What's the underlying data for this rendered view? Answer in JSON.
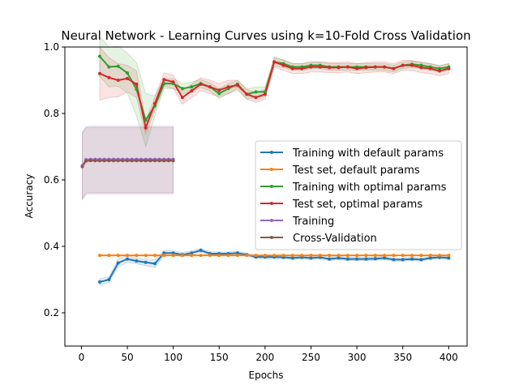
{
  "chart_data": {
    "type": "line",
    "title": "Neural Network - Learning Curves using k=10-Fold Cross Validation",
    "xlabel": "Epochs",
    "ylabel": "Accuracy",
    "xlim": [
      -18,
      420
    ],
    "ylim": [
      0.1,
      1.0
    ],
    "xticks": [
      0,
      50,
      100,
      150,
      200,
      250,
      300,
      350,
      400
    ],
    "yticks": [
      0.2,
      0.4,
      0.6,
      0.8,
      1.0
    ],
    "ytick_labels": [
      "0.2",
      "0.4",
      "0.6",
      "0.8",
      "1.0"
    ],
    "grid": false,
    "legend_position": "center-right",
    "series": [
      {
        "name": "Training with default params",
        "color": "#1f77b4",
        "x": [
          20,
          30,
          40,
          50,
          60,
          70,
          80,
          90,
          100,
          110,
          120,
          130,
          140,
          150,
          160,
          170,
          180,
          190,
          200,
          210,
          220,
          230,
          240,
          250,
          260,
          270,
          280,
          290,
          300,
          310,
          320,
          330,
          340,
          350,
          360,
          370,
          380,
          390,
          400
        ],
        "y": [
          0.293,
          0.3,
          0.35,
          0.362,
          0.356,
          0.352,
          0.348,
          0.38,
          0.38,
          0.375,
          0.38,
          0.388,
          0.378,
          0.378,
          0.378,
          0.38,
          0.375,
          0.368,
          0.368,
          0.368,
          0.367,
          0.365,
          0.367,
          0.365,
          0.367,
          0.362,
          0.365,
          0.362,
          0.362,
          0.362,
          0.363,
          0.365,
          0.36,
          0.36,
          0.362,
          0.36,
          0.365,
          0.367,
          0.365
        ],
        "band": [
          0.01,
          0.008,
          0.012,
          0.01,
          0.008,
          0.01,
          0.012,
          0.008,
          0.006,
          0.006,
          0.006,
          0.006,
          0.006,
          0.005,
          0.005,
          0.005,
          0.005,
          0.005,
          0.005,
          0.005,
          0.005,
          0.005,
          0.005,
          0.005,
          0.005,
          0.005,
          0.005,
          0.005,
          0.005,
          0.005,
          0.005,
          0.005,
          0.005,
          0.005,
          0.005,
          0.005,
          0.005,
          0.005,
          0.005
        ]
      },
      {
        "name": "Test set, default params",
        "color": "#ff7f0e",
        "x": [
          20,
          30,
          40,
          50,
          60,
          70,
          80,
          90,
          100,
          110,
          120,
          130,
          140,
          150,
          160,
          170,
          180,
          190,
          200,
          210,
          220,
          230,
          240,
          250,
          260,
          270,
          280,
          290,
          300,
          310,
          320,
          330,
          340,
          350,
          360,
          370,
          380,
          390,
          400
        ],
        "y": [
          0.373,
          0.373,
          0.373,
          0.373,
          0.373,
          0.373,
          0.373,
          0.373,
          0.373,
          0.373,
          0.373,
          0.373,
          0.373,
          0.373,
          0.373,
          0.373,
          0.373,
          0.373,
          0.373,
          0.373,
          0.373,
          0.373,
          0.373,
          0.373,
          0.373,
          0.373,
          0.373,
          0.373,
          0.373,
          0.373,
          0.373,
          0.373,
          0.373,
          0.373,
          0.373,
          0.373,
          0.373,
          0.373,
          0.373
        ],
        "band": [
          0,
          0,
          0,
          0,
          0,
          0,
          0,
          0,
          0,
          0,
          0,
          0,
          0,
          0,
          0,
          0,
          0,
          0,
          0,
          0,
          0,
          0,
          0,
          0,
          0,
          0,
          0,
          0,
          0,
          0,
          0,
          0,
          0,
          0,
          0,
          0,
          0,
          0,
          0
        ]
      },
      {
        "name": "Training with optimal params",
        "color": "#2ca02c",
        "x": [
          20,
          30,
          40,
          50,
          60,
          70,
          80,
          90,
          100,
          110,
          120,
          130,
          140,
          150,
          160,
          170,
          180,
          190,
          200,
          210,
          220,
          230,
          240,
          250,
          260,
          270,
          280,
          290,
          300,
          310,
          320,
          330,
          340,
          350,
          360,
          370,
          380,
          390,
          400
        ],
        "y": [
          0.972,
          0.94,
          0.942,
          0.922,
          0.873,
          0.78,
          0.823,
          0.89,
          0.89,
          0.875,
          0.88,
          0.89,
          0.88,
          0.86,
          0.875,
          0.888,
          0.858,
          0.865,
          0.865,
          0.955,
          0.95,
          0.94,
          0.94,
          0.945,
          0.945,
          0.94,
          0.94,
          0.94,
          0.94,
          0.94,
          0.94,
          0.94,
          0.935,
          0.945,
          0.948,
          0.945,
          0.94,
          0.935,
          0.94
        ],
        "band": [
          0.06,
          0.06,
          0.06,
          0.06,
          0.08,
          0.08,
          0.03,
          0.015,
          0.015,
          0.015,
          0.015,
          0.012,
          0.012,
          0.015,
          0.015,
          0.012,
          0.015,
          0.015,
          0.015,
          0.012,
          0.012,
          0.01,
          0.01,
          0.01,
          0.01,
          0.01,
          0.01,
          0.01,
          0.01,
          0.01,
          0.01,
          0.01,
          0.01,
          0.01,
          0.01,
          0.01,
          0.01,
          0.01,
          0.01
        ]
      },
      {
        "name": "Test set, optimal params",
        "color": "#d62728",
        "x": [
          20,
          30,
          40,
          50,
          60,
          70,
          80,
          90,
          100,
          110,
          120,
          130,
          140,
          150,
          160,
          170,
          180,
          190,
          200,
          210,
          220,
          230,
          240,
          250,
          260,
          270,
          280,
          290,
          300,
          310,
          320,
          330,
          340,
          350,
          360,
          370,
          380,
          390,
          400
        ],
        "y": [
          0.92,
          0.908,
          0.9,
          0.905,
          0.888,
          0.757,
          0.83,
          0.902,
          0.895,
          0.848,
          0.868,
          0.888,
          0.88,
          0.87,
          0.88,
          0.885,
          0.858,
          0.848,
          0.858,
          0.955,
          0.945,
          0.935,
          0.935,
          0.94,
          0.94,
          0.938,
          0.938,
          0.94,
          0.935,
          0.938,
          0.94,
          0.94,
          0.935,
          0.945,
          0.945,
          0.938,
          0.935,
          0.928,
          0.935
        ],
        "band": [
          0.08,
          0.06,
          0.05,
          0.04,
          0.04,
          0.02,
          0.02,
          0.02,
          0.02,
          0.02,
          0.02,
          0.02,
          0.02,
          0.02,
          0.02,
          0.015,
          0.015,
          0.015,
          0.015,
          0.015,
          0.015,
          0.015,
          0.015,
          0.015,
          0.015,
          0.015,
          0.015,
          0.015,
          0.015,
          0.015,
          0.015,
          0.015,
          0.015,
          0.015,
          0.015,
          0.015,
          0.015,
          0.015,
          0.015
        ]
      },
      {
        "name": "Training",
        "color": "#9467bd",
        "x": [
          1,
          5,
          10,
          15,
          20,
          25,
          30,
          35,
          40,
          45,
          50,
          55,
          60,
          65,
          70,
          75,
          80,
          85,
          90,
          95,
          100
        ],
        "y": [
          0.643,
          0.661,
          0.662,
          0.662,
          0.662,
          0.662,
          0.662,
          0.662,
          0.662,
          0.662,
          0.662,
          0.662,
          0.662,
          0.662,
          0.662,
          0.662,
          0.662,
          0.662,
          0.662,
          0.662,
          0.662
        ],
        "band": [
          0.1,
          0.1,
          0.1,
          0.1,
          0.1,
          0.1,
          0.1,
          0.1,
          0.1,
          0.1,
          0.1,
          0.1,
          0.1,
          0.1,
          0.1,
          0.1,
          0.1,
          0.1,
          0.1,
          0.1,
          0.1
        ]
      },
      {
        "name": "Cross-Validation",
        "color": "#8c564b",
        "x": [
          1,
          5,
          10,
          15,
          20,
          25,
          30,
          35,
          40,
          45,
          50,
          55,
          60,
          65,
          70,
          75,
          80,
          85,
          90,
          95,
          100
        ],
        "y": [
          0.64,
          0.657,
          0.658,
          0.658,
          0.658,
          0.658,
          0.658,
          0.658,
          0.658,
          0.658,
          0.658,
          0.658,
          0.658,
          0.658,
          0.658,
          0.658,
          0.658,
          0.658,
          0.658,
          0.658,
          0.658
        ],
        "band": [
          0.1,
          0.1,
          0.1,
          0.1,
          0.1,
          0.1,
          0.1,
          0.1,
          0.1,
          0.1,
          0.1,
          0.1,
          0.1,
          0.1,
          0.1,
          0.1,
          0.1,
          0.1,
          0.1,
          0.1,
          0.1
        ]
      }
    ]
  }
}
